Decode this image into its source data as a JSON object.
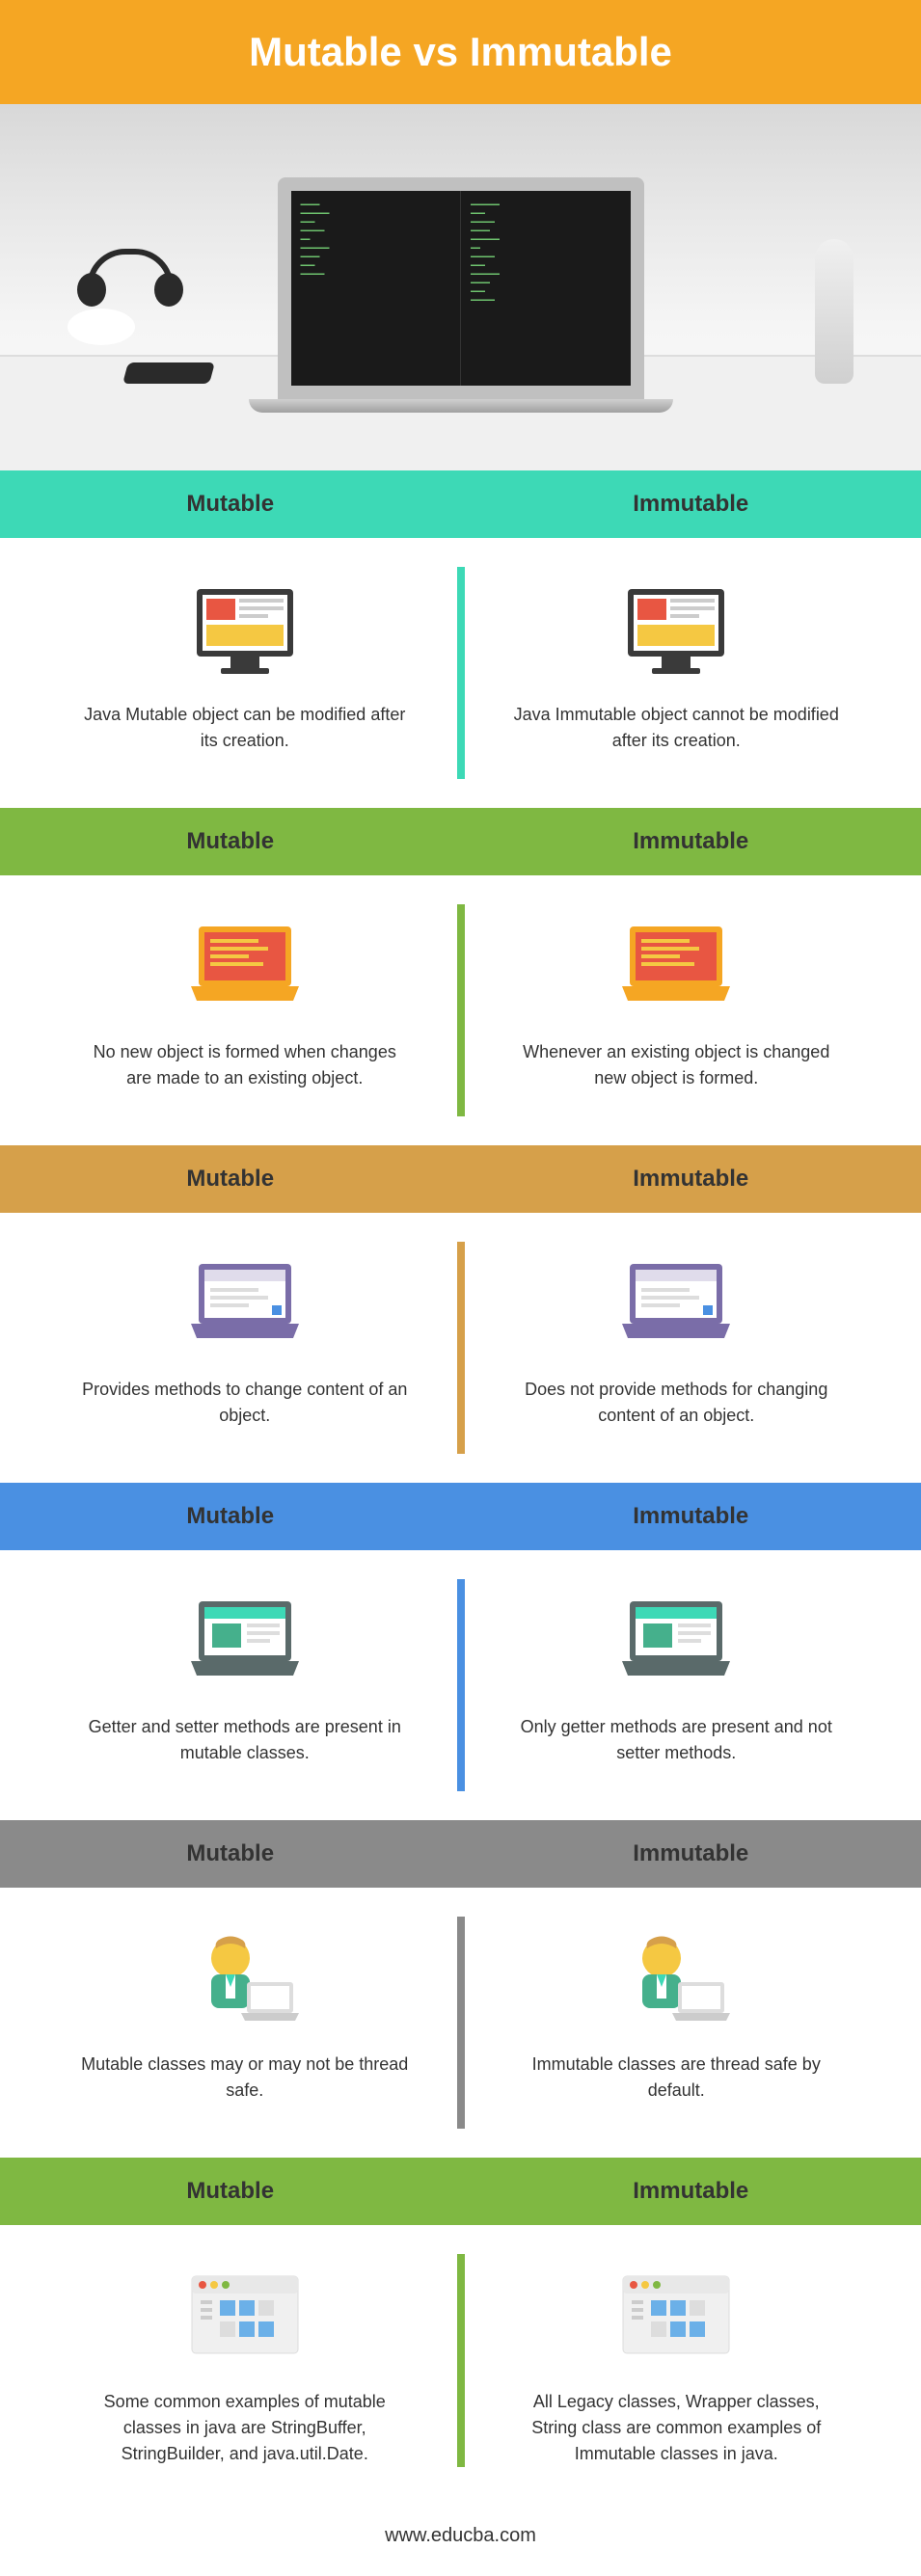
{
  "title": "Mutable vs Immutable",
  "footer": "www.educba.com",
  "col_left": "Mutable",
  "col_right": "Immutable",
  "sections": [
    {
      "header_bg": "#3dd9b6",
      "divider_bg": "#3dd9b6",
      "left_desc": "Java Mutable object can be modified after its creation.",
      "right_desc": "Java Immutable object cannot be modified after its creation."
    },
    {
      "header_bg": "#7fb842",
      "divider_bg": "#7fb842",
      "left_desc": "No new object is formed when changes are made to an existing object.",
      "right_desc": "Whenever an existing object is changed new object is formed."
    },
    {
      "header_bg": "#d6a04a",
      "divider_bg": "#d6a04a",
      "left_desc": "Provides methods to change content of an object.",
      "right_desc": "Does not provide methods for changing content of an object."
    },
    {
      "header_bg": "#4a90e2",
      "divider_bg": "#4a90e2",
      "left_desc": "Getter and setter methods are present in mutable classes.",
      "right_desc": "Only getter methods are present and not setter methods."
    },
    {
      "header_bg": "#8a8a8a",
      "divider_bg": "#8a8a8a",
      "left_desc": "Mutable classes may or may not be thread safe.",
      "right_desc": "Immutable classes are thread safe by default."
    },
    {
      "header_bg": "#7fb842",
      "divider_bg": "#7fb842",
      "left_desc": "Some common examples of mutable classes in java are StringBuffer, StringBuilder, and java.util.Date.",
      "right_desc": "All Legacy classes, Wrapper classes, String class are common examples of Immutable classes in java."
    }
  ]
}
